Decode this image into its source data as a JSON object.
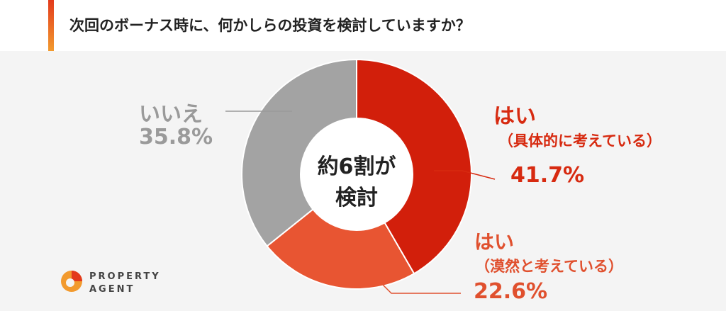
{
  "title": "次回のボーナス時に、何かしらの投資を検討していますか？",
  "center_label": {
    "line1": "約6割が",
    "line2": "検討"
  },
  "labels": {
    "no": {
      "text": "いいえ",
      "pct": "35.8%"
    },
    "yes_concrete": {
      "text": "はい",
      "sub": "（具体的に考えている）",
      "pct": "41.7%"
    },
    "yes_vague": {
      "text": "はい",
      "sub": "（漠然と考えている）",
      "pct": "22.6%"
    }
  },
  "logo": {
    "line1": "PROPERTY",
    "line2": "AGENT"
  },
  "colors": {
    "yes_concrete": "#d21f0b",
    "yes_vague": "#e85532",
    "no": "#a3a3a3",
    "accent": "#e33a1c"
  },
  "chart_data": {
    "type": "pie",
    "title": "次回のボーナス時に、何かしらの投資を検討していますか？",
    "slices": [
      {
        "label": "はい（具体的に考えている）",
        "value": 41.7
      },
      {
        "label": "はい（漠然と考えている）",
        "value": 22.6
      },
      {
        "label": "いいえ",
        "value": 35.8
      }
    ],
    "start_angle": "top",
    "direction": "clockwise",
    "donut": true
  }
}
